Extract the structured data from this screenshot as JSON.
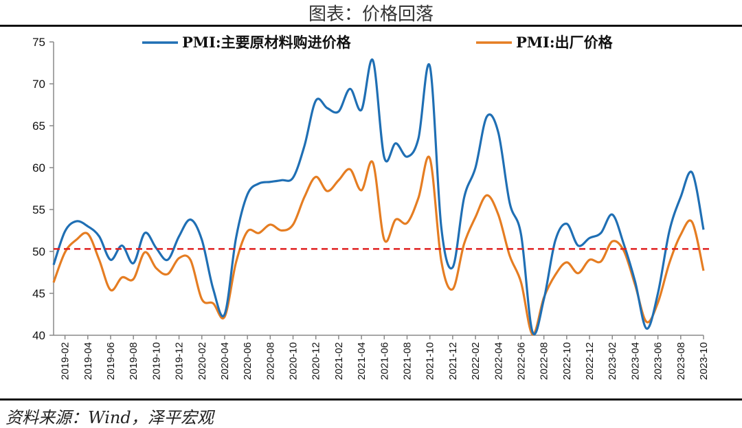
{
  "title": "图表：价格回落",
  "source": "资料来源：Wind，泽平宏观",
  "colors": {
    "blue": "#1f6fb4",
    "orange": "#e57d22",
    "ref": "#e02020"
  },
  "chart_data": {
    "type": "line",
    "title": "图表：价格回落",
    "ylim": [
      40,
      75
    ],
    "yticks": [
      40,
      45,
      50,
      55,
      60,
      65,
      70,
      75
    ],
    "reference_line": 50.3,
    "legend_position": "top",
    "x": [
      "2019-01",
      "2019-02",
      "2019-03",
      "2019-04",
      "2019-05",
      "2019-06",
      "2019-07",
      "2019-08",
      "2019-09",
      "2019-10",
      "2019-11",
      "2019-12",
      "2020-01",
      "2020-02",
      "2020-03",
      "2020-04",
      "2020-05",
      "2020-06",
      "2020-07",
      "2020-08",
      "2020-09",
      "2020-10",
      "2020-11",
      "2020-12",
      "2021-01",
      "2021-02",
      "2021-03",
      "2021-04",
      "2021-05",
      "2021-06",
      "2021-07",
      "2021-08",
      "2021-09",
      "2021-10",
      "2021-11",
      "2021-12",
      "2022-01",
      "2022-02",
      "2022-03",
      "2022-04",
      "2022-05",
      "2022-06",
      "2022-07",
      "2022-08",
      "2022-09",
      "2022-10",
      "2022-11",
      "2022-12",
      "2023-01",
      "2023-02",
      "2023-03",
      "2023-04",
      "2023-05",
      "2023-06",
      "2023-07",
      "2023-08",
      "2023-09",
      "2023-10"
    ],
    "xticks": [
      "2019-02",
      "2019-04",
      "2019-06",
      "2019-08",
      "2019-10",
      "2019-12",
      "2020-02",
      "2020-04",
      "2020-06",
      "2020-08",
      "2020-10",
      "2020-12",
      "2021-02",
      "2021-04",
      "2021-06",
      "2021-08",
      "2021-10",
      "2021-12",
      "2022-02",
      "2022-04",
      "2022-06",
      "2022-08",
      "2022-10",
      "2022-12",
      "2023-02",
      "2023-04",
      "2023-06",
      "2023-08",
      "2023-10"
    ],
    "series": [
      {
        "name": "PMI:主要原材料购进价格",
        "color": "#1f6fb4",
        "values": [
          48.4,
          52.4,
          53.6,
          53.0,
          51.8,
          49.0,
          50.7,
          48.6,
          52.2,
          50.4,
          49.0,
          51.8,
          53.8,
          51.4,
          45.5,
          42.5,
          51.6,
          56.8,
          58.1,
          58.3,
          58.5,
          58.8,
          62.6,
          68.0,
          67.1,
          66.7,
          69.4,
          66.9,
          72.8,
          61.2,
          62.9,
          61.3,
          63.5,
          72.1,
          52.9,
          48.1,
          56.4,
          60.0,
          66.1,
          64.2,
          55.8,
          52.0,
          40.4,
          44.3,
          51.3,
          53.3,
          50.7,
          51.6,
          52.2,
          54.4,
          50.9,
          46.4,
          40.8,
          45.0,
          52.4,
          56.5,
          59.4,
          52.6
        ]
      },
      {
        "name": "PMI:出厂价格",
        "color": "#e57d22",
        "values": [
          46.3,
          49.9,
          51.4,
          52.1,
          49.0,
          45.4,
          46.9,
          46.7,
          49.9,
          48.0,
          47.3,
          49.2,
          49.0,
          44.3,
          43.8,
          42.2,
          48.7,
          52.4,
          52.2,
          53.2,
          52.5,
          53.2,
          56.5,
          58.9,
          57.2,
          58.5,
          59.8,
          57.3,
          60.6,
          51.4,
          53.8,
          53.4,
          56.4,
          61.1,
          48.9,
          45.5,
          50.9,
          54.1,
          56.7,
          54.4,
          49.5,
          46.3,
          40.1,
          44.5,
          47.2,
          48.7,
          47.4,
          49.0,
          48.8,
          51.2,
          50.1,
          46.0,
          41.6,
          43.9,
          48.6,
          52.0,
          53.5,
          47.7
        ]
      }
    ]
  }
}
